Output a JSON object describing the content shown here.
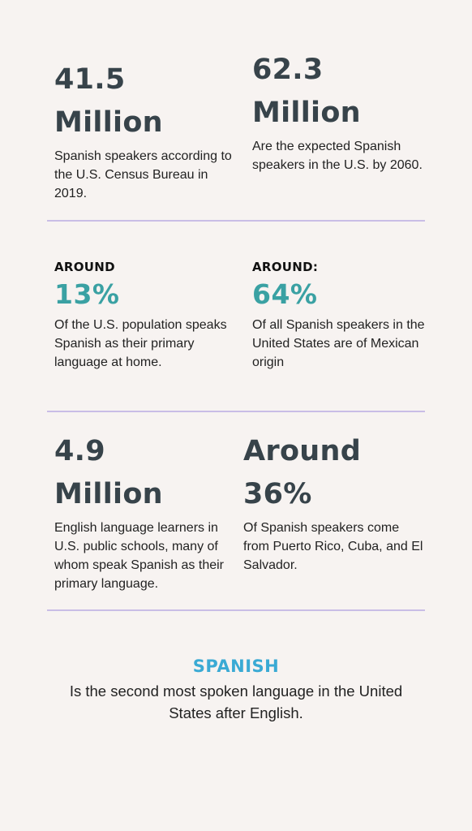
{
  "colors": {
    "background": "#f7f3f1",
    "heading": "#37434a",
    "teal": "#3aa1a3",
    "blue": "#3aaad4",
    "divider": "#c9bde6"
  },
  "stats": {
    "s1": {
      "number": "41.5",
      "unit": "Million",
      "description": "Spanish speakers according to the U.S. Census Bureau in 2019."
    },
    "s2": {
      "number": "62.3",
      "unit": "Million",
      "description": "Are the expected Spanish speakers in the U.S. by 2060."
    },
    "s3": {
      "kicker": "AROUND",
      "percent": "13%",
      "description": "Of the U.S. population speaks Spanish as their primary language at home."
    },
    "s4": {
      "kicker": "AROUND:",
      "percent": "64%",
      "description": "Of all Spanish speakers in the United States are of Mexican origin"
    },
    "s5": {
      "number": "4.9",
      "unit": "Million",
      "description": "English language learners in U.S. public schools, many of whom speak Spanish as their primary language."
    },
    "s6": {
      "number": "Around",
      "unit": "36%",
      "description": "Of Spanish speakers come from Puerto Rico, Cuba, and El Salvador."
    }
  },
  "footer": {
    "title": "SPANISH",
    "text": "Is the second most spoken language in the United States after English."
  }
}
